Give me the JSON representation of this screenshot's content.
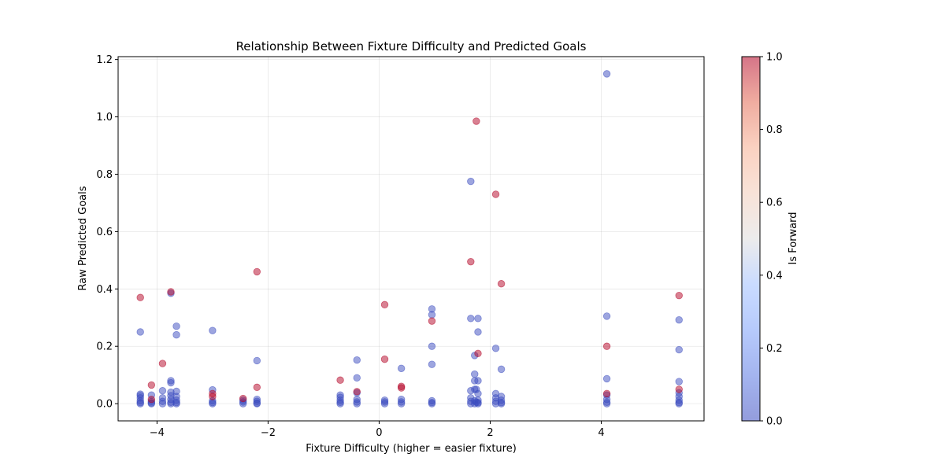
{
  "chart_data": {
    "type": "scatter",
    "title": "Relationship Between Fixture Difficulty and Predicted Goals",
    "xlabel": "Fixture Difficulty (higher = easier fixture)",
    "ylabel": "Raw Predicted Goals",
    "xlim": [
      -4.7,
      5.85
    ],
    "ylim": [
      -0.06,
      1.21
    ],
    "xticks": [
      -4,
      -2,
      0,
      2,
      4
    ],
    "xtick_labels": [
      "−4",
      "−2",
      "0",
      "2",
      "4"
    ],
    "yticks": [
      0.0,
      0.2,
      0.4,
      0.6,
      0.8,
      1.0,
      1.2
    ],
    "ytick_labels": [
      "0.0",
      "0.2",
      "0.4",
      "0.6",
      "0.8",
      "1.0",
      "1.2"
    ],
    "grid": true,
    "colorbar": {
      "label": "Is Forward",
      "colormap": "coolwarm",
      "range": [
        0,
        1
      ],
      "ticks": [
        0.0,
        0.2,
        0.4,
        0.6,
        0.8,
        1.0
      ],
      "tick_labels": [
        "0.0",
        "0.2",
        "0.4",
        "0.6",
        "0.8",
        "1.0"
      ]
    },
    "colors": {
      "non_forward": "#3b4cc0",
      "forward": "#b40426"
    },
    "points": [
      {
        "x": -4.3,
        "y": 0.37,
        "c": 1
      },
      {
        "x": -4.3,
        "y": 0.25,
        "c": 0
      },
      {
        "x": -4.3,
        "y": 0.033,
        "c": 0
      },
      {
        "x": -4.3,
        "y": 0.028,
        "c": 0
      },
      {
        "x": -4.3,
        "y": 0.02,
        "c": 0
      },
      {
        "x": -4.3,
        "y": 0.01,
        "c": 0
      },
      {
        "x": -4.3,
        "y": 0.004,
        "c": 0
      },
      {
        "x": -4.3,
        "y": 0.0,
        "c": 0
      },
      {
        "x": -4.1,
        "y": 0.065,
        "c": 1
      },
      {
        "x": -4.1,
        "y": 0.03,
        "c": 0
      },
      {
        "x": -4.1,
        "y": 0.015,
        "c": 1
      },
      {
        "x": -4.1,
        "y": 0.008,
        "c": 0
      },
      {
        "x": -4.1,
        "y": 0.003,
        "c": 0
      },
      {
        "x": -4.1,
        "y": 0.0,
        "c": 0
      },
      {
        "x": -3.9,
        "y": 0.14,
        "c": 1
      },
      {
        "x": -3.9,
        "y": 0.045,
        "c": 0
      },
      {
        "x": -3.9,
        "y": 0.02,
        "c": 0
      },
      {
        "x": -3.9,
        "y": 0.008,
        "c": 0
      },
      {
        "x": -3.9,
        "y": 0.0,
        "c": 0
      },
      {
        "x": -3.75,
        "y": 0.39,
        "c": 1
      },
      {
        "x": -3.75,
        "y": 0.385,
        "c": 0
      },
      {
        "x": -3.75,
        "y": 0.08,
        "c": 0
      },
      {
        "x": -3.75,
        "y": 0.073,
        "c": 0
      },
      {
        "x": -3.75,
        "y": 0.04,
        "c": 0
      },
      {
        "x": -3.75,
        "y": 0.028,
        "c": 0
      },
      {
        "x": -3.75,
        "y": 0.015,
        "c": 0
      },
      {
        "x": -3.75,
        "y": 0.005,
        "c": 0
      },
      {
        "x": -3.75,
        "y": 0.0,
        "c": 0
      },
      {
        "x": -3.65,
        "y": 0.27,
        "c": 0
      },
      {
        "x": -3.65,
        "y": 0.24,
        "c": 0
      },
      {
        "x": -3.65,
        "y": 0.043,
        "c": 0
      },
      {
        "x": -3.65,
        "y": 0.025,
        "c": 0
      },
      {
        "x": -3.65,
        "y": 0.012,
        "c": 0
      },
      {
        "x": -3.65,
        "y": 0.004,
        "c": 0
      },
      {
        "x": -3.65,
        "y": 0.0,
        "c": 0
      },
      {
        "x": -3.0,
        "y": 0.255,
        "c": 0
      },
      {
        "x": -3.0,
        "y": 0.048,
        "c": 0
      },
      {
        "x": -3.0,
        "y": 0.035,
        "c": 1
      },
      {
        "x": -3.0,
        "y": 0.025,
        "c": 1
      },
      {
        "x": -3.0,
        "y": 0.01,
        "c": 0
      },
      {
        "x": -3.0,
        "y": 0.004,
        "c": 0
      },
      {
        "x": -3.0,
        "y": 0.0,
        "c": 0
      },
      {
        "x": -2.45,
        "y": 0.018,
        "c": 1
      },
      {
        "x": -2.45,
        "y": 0.012,
        "c": 0
      },
      {
        "x": -2.45,
        "y": 0.006,
        "c": 0
      },
      {
        "x": -2.45,
        "y": 0.0,
        "c": 0
      },
      {
        "x": -2.2,
        "y": 0.46,
        "c": 1
      },
      {
        "x": -2.2,
        "y": 0.15,
        "c": 0
      },
      {
        "x": -2.2,
        "y": 0.057,
        "c": 1
      },
      {
        "x": -2.2,
        "y": 0.015,
        "c": 0
      },
      {
        "x": -2.2,
        "y": 0.008,
        "c": 0
      },
      {
        "x": -2.2,
        "y": 0.002,
        "c": 0
      },
      {
        "x": -2.2,
        "y": 0.0,
        "c": 0
      },
      {
        "x": -0.7,
        "y": 0.082,
        "c": 1
      },
      {
        "x": -0.7,
        "y": 0.03,
        "c": 0
      },
      {
        "x": -0.7,
        "y": 0.022,
        "c": 0
      },
      {
        "x": -0.7,
        "y": 0.012,
        "c": 0
      },
      {
        "x": -0.7,
        "y": 0.005,
        "c": 0
      },
      {
        "x": -0.7,
        "y": 0.0,
        "c": 0
      },
      {
        "x": -0.4,
        "y": 0.152,
        "c": 0
      },
      {
        "x": -0.4,
        "y": 0.09,
        "c": 0
      },
      {
        "x": -0.4,
        "y": 0.042,
        "c": 1
      },
      {
        "x": -0.4,
        "y": 0.038,
        "c": 0
      },
      {
        "x": -0.4,
        "y": 0.015,
        "c": 0
      },
      {
        "x": -0.4,
        "y": 0.006,
        "c": 0
      },
      {
        "x": -0.4,
        "y": 0.0,
        "c": 0
      },
      {
        "x": 0.1,
        "y": 0.345,
        "c": 1
      },
      {
        "x": 0.1,
        "y": 0.155,
        "c": 1
      },
      {
        "x": 0.1,
        "y": 0.012,
        "c": 0
      },
      {
        "x": 0.1,
        "y": 0.006,
        "c": 0
      },
      {
        "x": 0.1,
        "y": 0.0,
        "c": 0
      },
      {
        "x": 0.4,
        "y": 0.123,
        "c": 0
      },
      {
        "x": 0.4,
        "y": 0.06,
        "c": 1
      },
      {
        "x": 0.4,
        "y": 0.055,
        "c": 1
      },
      {
        "x": 0.4,
        "y": 0.015,
        "c": 0
      },
      {
        "x": 0.4,
        "y": 0.006,
        "c": 0
      },
      {
        "x": 0.4,
        "y": 0.0,
        "c": 0
      },
      {
        "x": 0.95,
        "y": 0.33,
        "c": 0
      },
      {
        "x": 0.95,
        "y": 0.31,
        "c": 0
      },
      {
        "x": 0.95,
        "y": 0.288,
        "c": 1
      },
      {
        "x": 0.95,
        "y": 0.2,
        "c": 0
      },
      {
        "x": 0.95,
        "y": 0.137,
        "c": 0
      },
      {
        "x": 0.95,
        "y": 0.01,
        "c": 0
      },
      {
        "x": 0.95,
        "y": 0.004,
        "c": 0
      },
      {
        "x": 0.95,
        "y": 0.0,
        "c": 0
      },
      {
        "x": 1.65,
        "y": 0.775,
        "c": 0
      },
      {
        "x": 1.65,
        "y": 0.495,
        "c": 1
      },
      {
        "x": 1.65,
        "y": 0.297,
        "c": 0
      },
      {
        "x": 1.65,
        "y": 0.045,
        "c": 0
      },
      {
        "x": 1.65,
        "y": 0.02,
        "c": 0
      },
      {
        "x": 1.65,
        "y": 0.008,
        "c": 0
      },
      {
        "x": 1.65,
        "y": 0.0,
        "c": 0
      },
      {
        "x": 1.72,
        "y": 0.168,
        "c": 0
      },
      {
        "x": 1.72,
        "y": 0.103,
        "c": 0
      },
      {
        "x": 1.72,
        "y": 0.08,
        "c": 0
      },
      {
        "x": 1.72,
        "y": 0.05,
        "c": 0
      },
      {
        "x": 1.72,
        "y": 0.01,
        "c": 0
      },
      {
        "x": 1.72,
        "y": 0.0,
        "c": 0
      },
      {
        "x": 1.75,
        "y": 0.985,
        "c": 1
      },
      {
        "x": 1.75,
        "y": 0.05,
        "c": 0
      },
      {
        "x": 1.75,
        "y": 0.005,
        "c": 0
      },
      {
        "x": 1.78,
        "y": 0.297,
        "c": 0
      },
      {
        "x": 1.78,
        "y": 0.25,
        "c": 0
      },
      {
        "x": 1.78,
        "y": 0.175,
        "c": 1
      },
      {
        "x": 1.78,
        "y": 0.08,
        "c": 0
      },
      {
        "x": 1.78,
        "y": 0.035,
        "c": 0
      },
      {
        "x": 1.78,
        "y": 0.012,
        "c": 0
      },
      {
        "x": 1.78,
        "y": 0.004,
        "c": 0
      },
      {
        "x": 1.78,
        "y": 0.0,
        "c": 0
      },
      {
        "x": 2.1,
        "y": 0.73,
        "c": 1
      },
      {
        "x": 2.1,
        "y": 0.193,
        "c": 0
      },
      {
        "x": 2.1,
        "y": 0.035,
        "c": 0
      },
      {
        "x": 2.1,
        "y": 0.02,
        "c": 0
      },
      {
        "x": 2.1,
        "y": 0.008,
        "c": 0
      },
      {
        "x": 2.1,
        "y": 0.0,
        "c": 0
      },
      {
        "x": 2.2,
        "y": 0.418,
        "c": 1
      },
      {
        "x": 2.2,
        "y": 0.12,
        "c": 0
      },
      {
        "x": 2.2,
        "y": 0.025,
        "c": 0
      },
      {
        "x": 2.2,
        "y": 0.012,
        "c": 0
      },
      {
        "x": 2.2,
        "y": 0.004,
        "c": 0
      },
      {
        "x": 2.2,
        "y": 0.0,
        "c": 0
      },
      {
        "x": 4.1,
        "y": 1.15,
        "c": 0
      },
      {
        "x": 4.1,
        "y": 0.305,
        "c": 0
      },
      {
        "x": 4.1,
        "y": 0.2,
        "c": 1
      },
      {
        "x": 4.1,
        "y": 0.087,
        "c": 0
      },
      {
        "x": 4.1,
        "y": 0.035,
        "c": 1
      },
      {
        "x": 4.1,
        "y": 0.03,
        "c": 0
      },
      {
        "x": 4.1,
        "y": 0.015,
        "c": 0
      },
      {
        "x": 4.1,
        "y": 0.005,
        "c": 0
      },
      {
        "x": 4.1,
        "y": 0.0,
        "c": 0
      },
      {
        "x": 5.4,
        "y": 0.377,
        "c": 1
      },
      {
        "x": 5.4,
        "y": 0.292,
        "c": 0
      },
      {
        "x": 5.4,
        "y": 0.188,
        "c": 0
      },
      {
        "x": 5.4,
        "y": 0.077,
        "c": 0
      },
      {
        "x": 5.4,
        "y": 0.05,
        "c": 1
      },
      {
        "x": 5.4,
        "y": 0.038,
        "c": 0
      },
      {
        "x": 5.4,
        "y": 0.025,
        "c": 0
      },
      {
        "x": 5.4,
        "y": 0.012,
        "c": 0
      },
      {
        "x": 5.4,
        "y": 0.004,
        "c": 0
      },
      {
        "x": 5.4,
        "y": 0.0,
        "c": 0
      }
    ]
  }
}
